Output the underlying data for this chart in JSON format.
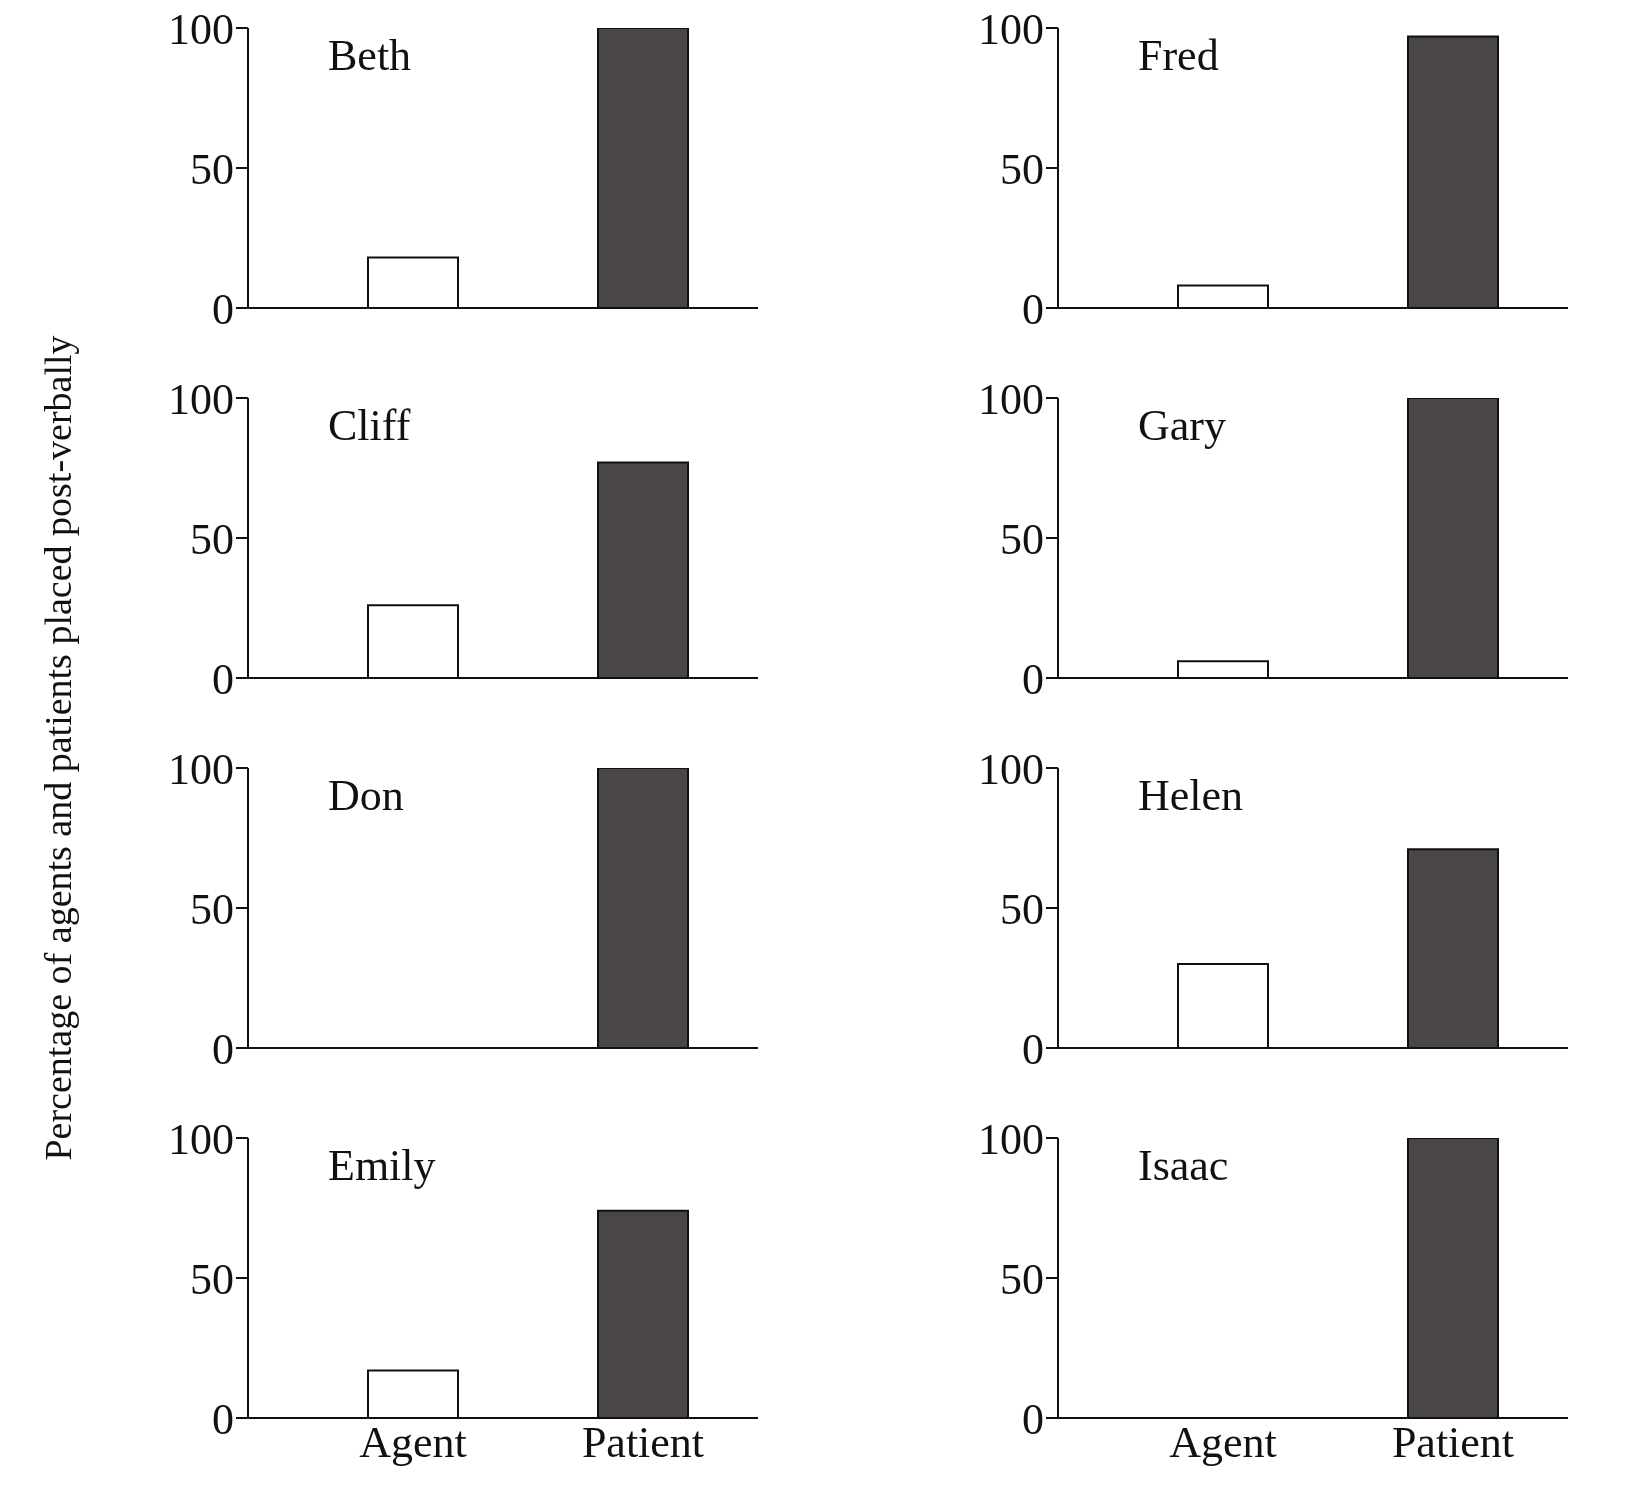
{
  "chart_data": [
    {
      "type": "bar",
      "title": "Beth",
      "ylabel": "Percentage of agents and patients placed post-verbally",
      "categories": [
        null,
        null
      ],
      "values": [
        18,
        100
      ],
      "colors": [
        "#ffffff",
        "#4a4546"
      ],
      "ylim": [
        0,
        100
      ],
      "yticks": [
        0,
        50,
        100
      ]
    },
    {
      "type": "bar",
      "title": "Fred",
      "categories": [
        null,
        null
      ],
      "values": [
        8,
        97
      ],
      "colors": [
        "#ffffff",
        "#4a4546"
      ],
      "ylim": [
        0,
        100
      ],
      "yticks": [
        0,
        50,
        100
      ]
    },
    {
      "type": "bar",
      "title": "Cliff",
      "categories": [
        null,
        null
      ],
      "values": [
        26,
        77
      ],
      "colors": [
        "#ffffff",
        "#4a4546"
      ],
      "ylim": [
        0,
        100
      ],
      "yticks": [
        0,
        50,
        100
      ]
    },
    {
      "type": "bar",
      "title": "Gary",
      "categories": [
        null,
        null
      ],
      "values": [
        6,
        100
      ],
      "colors": [
        "#ffffff",
        "#4a4546"
      ],
      "ylim": [
        0,
        100
      ],
      "yticks": [
        0,
        50,
        100
      ]
    },
    {
      "type": "bar",
      "title": "Don",
      "categories": [
        null,
        null
      ],
      "values": [
        0,
        100
      ],
      "colors": [
        "#ffffff",
        "#4a4546"
      ],
      "ylim": [
        0,
        100
      ],
      "yticks": [
        0,
        50,
        100
      ]
    },
    {
      "type": "bar",
      "title": "Helen",
      "categories": [
        null,
        null
      ],
      "values": [
        30,
        71
      ],
      "colors": [
        "#ffffff",
        "#4a4546"
      ],
      "ylim": [
        0,
        100
      ],
      "yticks": [
        0,
        50,
        100
      ]
    },
    {
      "type": "bar",
      "title": "Emily",
      "categories": [
        "Agent",
        "Patient"
      ],
      "values": [
        17,
        74
      ],
      "colors": [
        "#ffffff",
        "#4a4546"
      ],
      "ylim": [
        0,
        100
      ],
      "yticks": [
        0,
        50,
        100
      ]
    },
    {
      "type": "bar",
      "title": "Isaac",
      "categories": [
        "Agent",
        "Patient"
      ],
      "values": [
        0,
        100
      ],
      "colors": [
        "#ffffff",
        "#4a4546"
      ],
      "ylim": [
        0,
        100
      ],
      "yticks": [
        0,
        50,
        100
      ]
    }
  ]
}
